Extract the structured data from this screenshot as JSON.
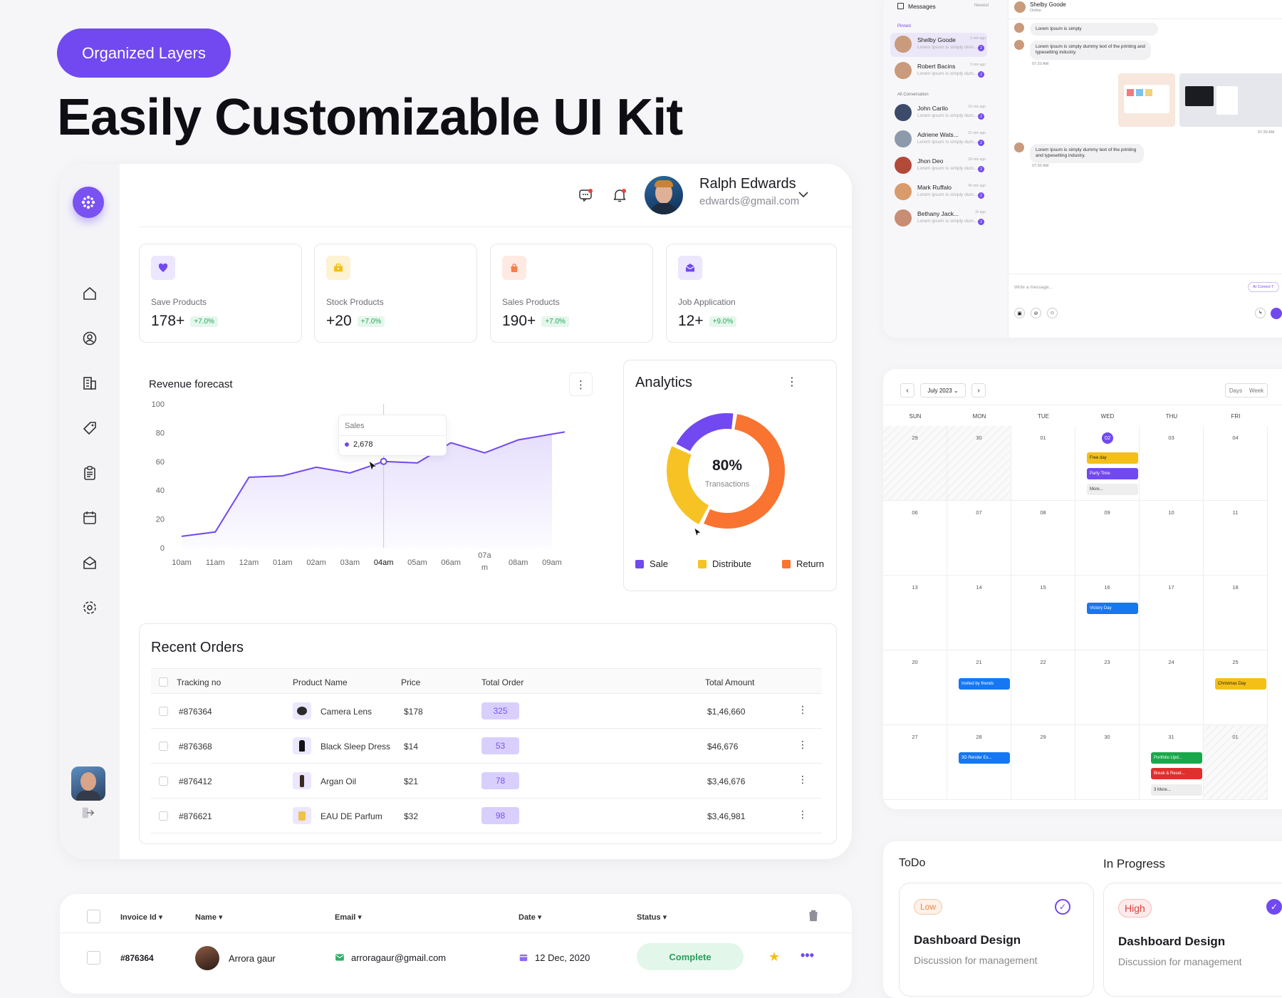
{
  "hero": {
    "pill_label": "Organized Layers",
    "headline": "Easily Customizable UI Kit"
  },
  "colors": {
    "accent": "#7249f0",
    "sale": "#7249f0",
    "distribute": "#f7c224",
    "return": "#f97430",
    "positive": "#27a55e"
  },
  "sidebar": {
    "icons": [
      "home-icon",
      "user-icon",
      "building-icon",
      "tag-icon",
      "clipboard-icon",
      "calendar-icon",
      "mail-open-icon",
      "settings-icon"
    ],
    "logout_icon": "logout-icon"
  },
  "header": {
    "user_name": "Ralph Edwards",
    "user_email": "edwards@gmail.com"
  },
  "stats": [
    {
      "label": "Save Products",
      "value": "178+",
      "change": "+7.0%",
      "icon": "heart-icon",
      "color": "#7249f0",
      "bg": "#ece6fe"
    },
    {
      "label": "Stock Products",
      "value": "+20",
      "change": "+7.0%",
      "icon": "briefcase-icon",
      "color": "#f4c018",
      "bg": "#fdf3d3"
    },
    {
      "label": "Sales Products",
      "value": "190+",
      "change": "+7.0%",
      "icon": "bag-icon",
      "color": "#f97c4a",
      "bg": "#feeae2"
    },
    {
      "label": "Job Application",
      "value": "12+",
      "change": "+9.0%",
      "icon": "mail-icon",
      "color": "#7249f0",
      "bg": "#ece6fe"
    }
  ],
  "revenue": {
    "title": "Revenue forecast",
    "menu_icon": "more-vertical-icon",
    "tooltip_title": "Sales",
    "tooltip_value": "2,678"
  },
  "chart_data": {
    "type": "area",
    "title": "Revenue forecast",
    "x": [
      "10am",
      "11am",
      "12am",
      "01am",
      "02am",
      "03am",
      "04am",
      "05am",
      "06am",
      "07am",
      "08am",
      "09am"
    ],
    "x_labels": [
      "10am",
      "11am",
      "12am",
      "01am",
      "02am",
      "03am",
      "04am",
      "05am",
      "06am",
      "07a\nm",
      "08am",
      "09am"
    ],
    "series": [
      {
        "name": "Sales",
        "values": [
          8,
          11,
          49,
          50,
          56,
          52,
          60,
          59,
          73,
          66,
          75,
          79
        ]
      }
    ],
    "highlight_index": 6,
    "y_ticks": [
      0,
      20,
      40,
      60,
      80,
      100
    ],
    "ylim": [
      0,
      100
    ],
    "grid": false
  },
  "analytics": {
    "title": "Analytics",
    "center_value": "80%",
    "center_label": "Transactions",
    "legend": [
      "Sale",
      "Distribute",
      "Return"
    ],
    "donut": [
      {
        "name": "Sale",
        "value": 20,
        "color": "#7249f0"
      },
      {
        "name": "Return",
        "value": 55,
        "color": "#f97430"
      },
      {
        "name": "Distribute",
        "value": 25,
        "color": "#f7c224"
      }
    ]
  },
  "orders": {
    "title": "Recent Orders",
    "columns": [
      "Tracking no",
      "Product Name",
      "Price",
      "Total Order",
      "Total Amount"
    ],
    "rows": [
      {
        "tracking": "#876364",
        "product": "Camera Lens",
        "price": "$178",
        "total": "325",
        "amount": "$1,46,660"
      },
      {
        "tracking": "#876368",
        "product": "Black Sleep Dress",
        "price": "$14",
        "total": "53",
        "amount": "$46,676"
      },
      {
        "tracking": "#876412",
        "product": "Argan Oil",
        "price": "$21",
        "total": "78",
        "amount": "$3,46,676"
      },
      {
        "tracking": "#876621",
        "product": "EAU DE Parfum",
        "price": "$32",
        "total": "98",
        "amount": "$3,46,981"
      }
    ]
  },
  "invoice": {
    "columns": [
      "Invoice Id",
      "Name",
      "Email",
      "Date",
      "Status"
    ],
    "row": {
      "id": "#876364",
      "name": "Arrora gaur",
      "email": "arroragaur@gmail.com",
      "date": "12 Dec, 2020",
      "status": "Complete"
    }
  },
  "messages": {
    "title": "Messages",
    "sort": "Newest",
    "pinned": "Pinned",
    "all": "All Conversation",
    "chat_name": "Shelby Goode",
    "chat_status": "Online",
    "preview": "Lorem ipsum is simply dum...",
    "items": [
      {
        "name": "Shelby Goode",
        "time": "1 min ago",
        "count": "2"
      },
      {
        "name": "Robert Bacins",
        "time": "9 min ago",
        "count": "2"
      },
      {
        "name": "John Carilo",
        "time": "15 min ago",
        "count": "2"
      },
      {
        "name": "Adriene Wats...",
        "time": "21 min ago",
        "count": "2"
      },
      {
        "name": "Jhon Deo",
        "time": "29 min ago",
        "count": "2"
      },
      {
        "name": "Mark Ruffalo",
        "time": "40 min ago",
        "count": "2"
      },
      {
        "name": "Bethany Jack...",
        "time": "1h ago",
        "count": "2"
      }
    ],
    "bubbles": [
      "Lorem Ipsum is simply",
      "Lorem Ipsum is simply dummy text of the printing and typesetting industry.",
      "Lorem Ipsum is simply dummy text of the printing and typesetting industry."
    ],
    "times": [
      "07:20 AM",
      "07:30 AM",
      "07:30 AM"
    ],
    "input_placeholder": "Write a message...",
    "ai_label": "AI Correct T"
  },
  "calendar": {
    "month": "July 2023",
    "views": [
      "Days",
      "Week"
    ],
    "weekdays": [
      "SUN",
      "MON",
      "TUE",
      "WED",
      "THU",
      "FRI"
    ],
    "weeks": [
      [
        "29",
        "30",
        "01",
        "02",
        "03",
        "04"
      ],
      [
        "06",
        "07",
        "08",
        "09",
        "10",
        "11"
      ],
      [
        "13",
        "14",
        "15",
        "16",
        "17",
        "18"
      ],
      [
        "20",
        "21",
        "22",
        "23",
        "24",
        "25"
      ],
      [
        "27",
        "28",
        "29",
        "30",
        "31",
        "01"
      ]
    ],
    "events": {
      "free_day": "Free day",
      "party": "Party Time",
      "more": "More...",
      "victory": "Victory Day",
      "invited": "Invited by friends",
      "christmas": "Christmas Day",
      "render": "3D Render Ex...",
      "portfolio": "Portfolio Upd...",
      "break": "Break & Reset...",
      "more3": "3 More..."
    }
  },
  "kanban": {
    "todo": "ToDo",
    "progress": "In Progress",
    "cards": [
      {
        "priority": "Low",
        "title": "Dashboard Design",
        "desc": "Discussion for management"
      },
      {
        "priority": "High",
        "title": "Dashboard Design",
        "desc": "Discussion for management"
      }
    ]
  }
}
